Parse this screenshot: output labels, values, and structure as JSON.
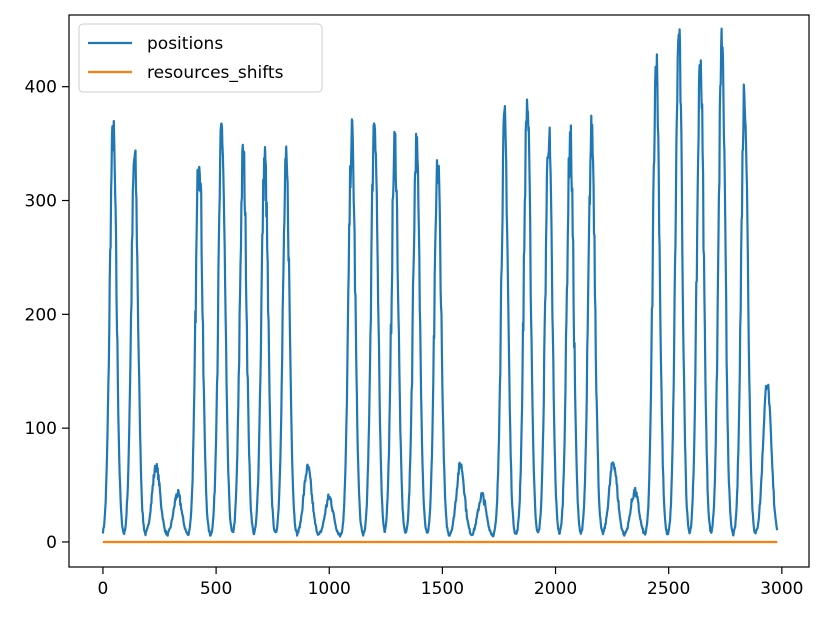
{
  "chart_data": {
    "type": "line",
    "title": "",
    "xlabel": "",
    "ylabel": "",
    "xlim": [
      -150,
      3120
    ],
    "ylim": [
      -22,
      463
    ],
    "x_ticks": [
      0,
      500,
      1000,
      1500,
      2000,
      2500,
      3000
    ],
    "x_tick_labels": [
      "0",
      "500",
      "1000",
      "1500",
      "2000",
      "2500",
      "3000"
    ],
    "y_ticks": [
      0,
      100,
      200,
      300,
      400
    ],
    "y_tick_labels": [
      "0",
      "100",
      "200",
      "300",
      "400"
    ],
    "grid": false,
    "legend_position": "top-left",
    "series": [
      {
        "name": "positions",
        "color": "#1f77b4",
        "peaks": [
          [
            45,
            360
          ],
          [
            140,
            338
          ],
          [
            235,
            66
          ],
          [
            330,
            42
          ],
          [
            425,
            346
          ],
          [
            525,
            362
          ],
          [
            620,
            339
          ],
          [
            715,
            336
          ],
          [
            810,
            329
          ],
          [
            905,
            65
          ],
          [
            1000,
            39
          ],
          [
            1100,
            357
          ],
          [
            1200,
            374
          ],
          [
            1290,
            350
          ],
          [
            1385,
            346
          ],
          [
            1480,
            331
          ],
          [
            1580,
            68
          ],
          [
            1675,
            41
          ],
          [
            1775,
            366
          ],
          [
            1875,
            385
          ],
          [
            1970,
            359
          ],
          [
            2065,
            355
          ],
          [
            2160,
            360
          ],
          [
            2255,
            70
          ],
          [
            2350,
            44
          ],
          [
            2445,
            422
          ],
          [
            2545,
            443
          ],
          [
            2640,
            423
          ],
          [
            2735,
            434
          ],
          [
            2835,
            397
          ],
          [
            2935,
            140
          ]
        ],
        "x_start": 0,
        "x_end": 2980,
        "baseline": 5
      },
      {
        "name": "resources_shifts",
        "color": "#ff7f0e",
        "x": [
          0,
          2980
        ],
        "values": [
          0,
          0
        ]
      }
    ]
  }
}
